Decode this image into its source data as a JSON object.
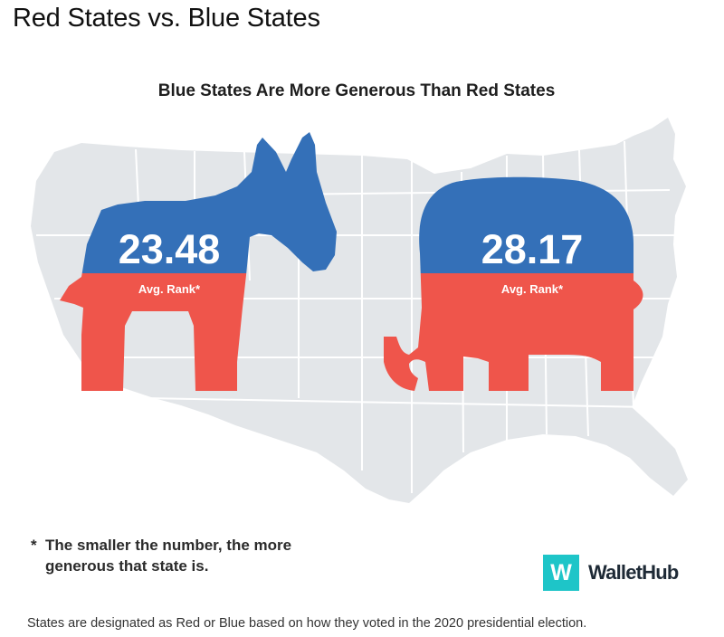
{
  "page": {
    "heading": "Red States vs. Blue States"
  },
  "chart_data": {
    "type": "bar",
    "title": "Blue States Are More Generous Than Red States",
    "categories": [
      "Blue States",
      "Red States"
    ],
    "values": [
      23.48,
      28.17
    ],
    "value_labels": [
      "23.48",
      "28.17"
    ],
    "sub_label": "Avg. Rank*",
    "xlabel": "",
    "ylabel": "",
    "colors": {
      "blue": "#3470b8",
      "red": "#ef554b",
      "map": "#e3e6e9",
      "map_borders": "#ffffff"
    }
  },
  "note": {
    "star": "*",
    "text": "The smaller the number, the more generous that state is."
  },
  "logo": {
    "mark": "W",
    "name": "WalletHub",
    "color": "#1ec5c8"
  },
  "footer": {
    "text": "States are designated as Red or Blue based on how they voted in the 2020 presidential election."
  }
}
